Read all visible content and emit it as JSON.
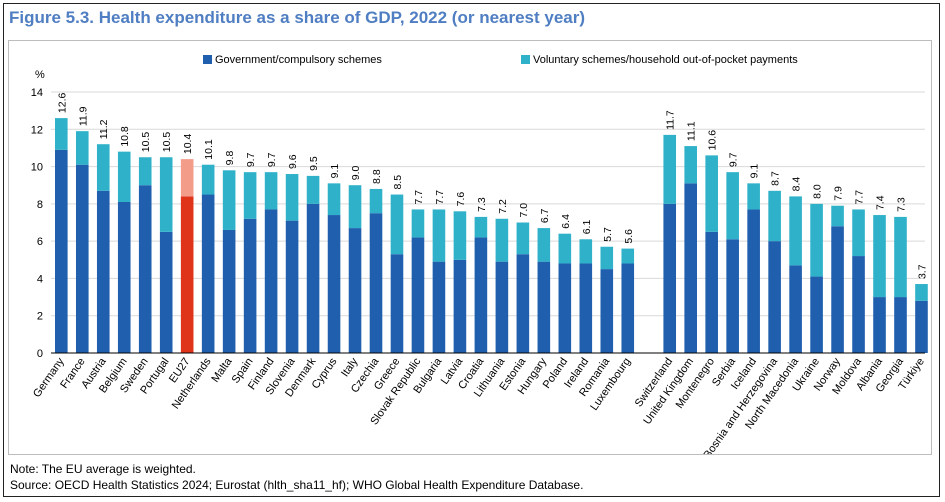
{
  "figure": {
    "title": "Figure 5.3. Health expenditure as a share of GDP, 2022 (or nearest year)",
    "note": "Note: The EU average is weighted.",
    "source": "Source: OECD Health Statistics 2024; Eurostat (hlth_sha11_hf); WHO Global Health Expenditure Database."
  },
  "colors": {
    "government": "#1f5fae",
    "voluntary": "#2fb2c9",
    "eu_government": "#e0341a",
    "eu_voluntary": "#f39c8a",
    "title": "#4f7ec2"
  },
  "chart_data": {
    "type": "bar",
    "stacked": true,
    "ylabel": "%",
    "ylim": [
      0,
      14
    ],
    "yticks": [
      0,
      2,
      4,
      6,
      8,
      10,
      12,
      14
    ],
    "grid": true,
    "legend_position": "top",
    "series": [
      {
        "name": "Government/compulsory schemes"
      },
      {
        "name": "Voluntary schemes/household out-of-pocket payments"
      }
    ],
    "groups": [
      {
        "categories": [
          "Germany",
          "France",
          "Austria",
          "Belgium",
          "Sweden",
          "Portugal",
          "EU27",
          "Netherlands",
          "Malta",
          "Spain",
          "Finland",
          "Slovenia",
          "Denmark",
          "Cyprus",
          "Italy",
          "Czechia",
          "Greece",
          "Slovak Republic",
          "Bulgaria",
          "Latvia",
          "Croatia",
          "Lithuania",
          "Estonia",
          "Hungary",
          "Poland",
          "Ireland",
          "Romania",
          "Luxembourg"
        ],
        "government": [
          10.9,
          10.1,
          8.7,
          8.1,
          9.0,
          6.5,
          8.4,
          8.5,
          6.6,
          7.2,
          7.7,
          7.1,
          8.0,
          7.4,
          6.7,
          7.5,
          5.3,
          6.2,
          4.9,
          5.0,
          6.2,
          4.9,
          5.3,
          4.9,
          4.8,
          4.8,
          4.5,
          4.8
        ],
        "totals": [
          12.6,
          11.9,
          11.2,
          10.8,
          10.5,
          10.5,
          10.4,
          10.1,
          9.8,
          9.7,
          9.7,
          9.6,
          9.5,
          9.1,
          9.0,
          8.8,
          8.5,
          7.7,
          7.7,
          7.6,
          7.3,
          7.2,
          7.0,
          6.7,
          6.4,
          6.1,
          5.7,
          5.6
        ],
        "labels": [
          "12.6",
          "11.9",
          "11.2",
          "10.8",
          "10.5",
          "10.5",
          "10.4",
          "10.1",
          "9.8",
          "9.7",
          "9.7",
          "9.6",
          "9.5",
          "9.1",
          "9.0",
          "8.8",
          "8.5",
          "7.7",
          "7.7",
          "7.6",
          "7.3",
          "7.2",
          "7.0",
          "6.7",
          "6.4",
          "6.1",
          "5.7",
          "5.6"
        ]
      },
      {
        "categories": [
          "Switzerland",
          "United Kingdom",
          "Montenegro",
          "Serbia",
          "Iceland",
          "Bosnia and Herzegovina",
          "North Macedonia",
          "Ukraine",
          "Norway",
          "Moldova",
          "Albania",
          "Georgia",
          "Türkiye"
        ],
        "government": [
          8.0,
          9.1,
          6.5,
          6.1,
          7.7,
          6.0,
          4.7,
          4.1,
          6.8,
          5.2,
          3.0,
          3.0,
          2.8
        ],
        "totals": [
          11.7,
          11.1,
          10.6,
          9.7,
          9.1,
          8.7,
          8.4,
          8.0,
          7.9,
          7.7,
          7.4,
          7.3,
          3.7
        ],
        "labels": [
          "11.7",
          "11.1",
          "10.6",
          "9.7",
          "9.1",
          "8.7",
          "8.4",
          "8.0",
          "7.9",
          "7.7",
          "7.4",
          "7.3",
          "3.7"
        ]
      }
    ],
    "highlight": "EU27"
  }
}
